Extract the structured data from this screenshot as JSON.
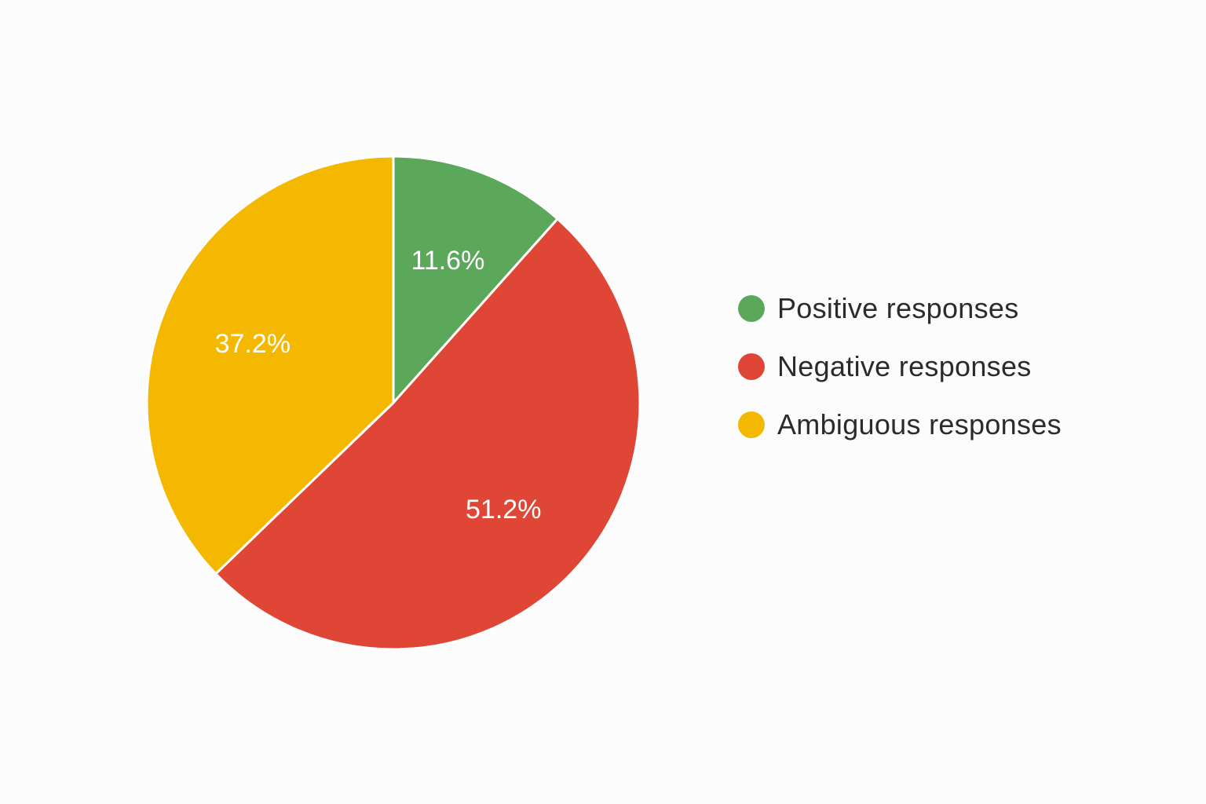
{
  "chart_data": {
    "type": "pie",
    "title": "",
    "categories": [
      "Positive responses",
      "Negative responses",
      "Ambiguous responses"
    ],
    "values": [
      11.6,
      51.2,
      37.2
    ],
    "unit": "%",
    "colors": [
      "#5ba85a",
      "#df4636",
      "#f5b800"
    ],
    "data_labels": [
      "11.6%",
      "51.2%",
      "37.2%"
    ],
    "start_angle": "12 o'clock",
    "direction": "clockwise",
    "legend_position": "right"
  },
  "legend": {
    "items": [
      {
        "label": "Positive responses",
        "color": "#5ba85a"
      },
      {
        "label": "Negative responses",
        "color": "#df4636"
      },
      {
        "label": "Ambiguous responses",
        "color": "#f5b800"
      }
    ]
  }
}
